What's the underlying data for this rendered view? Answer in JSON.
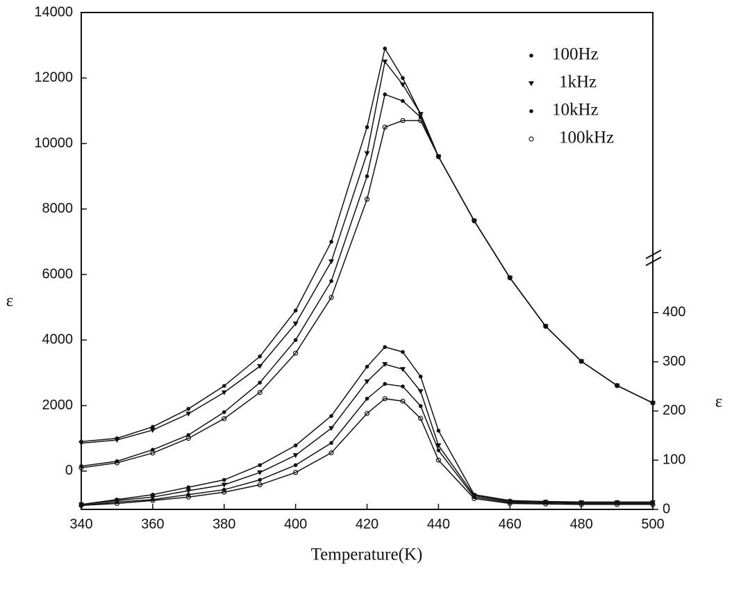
{
  "chart_data": {
    "type": "line",
    "x_label": "Temperature(K)",
    "y_label": "ε",
    "y2_label": "ε",
    "x": [
      340,
      350,
      360,
      370,
      380,
      390,
      400,
      410,
      420,
      425,
      430,
      435,
      440,
      450,
      460,
      470,
      480,
      490,
      500
    ],
    "series": [
      {
        "name": "100Hz",
        "color": "#111111",
        "marker": "dot",
        "values": [
          900,
          1000,
          1350,
          1900,
          2600,
          3500,
          4900,
          7000,
          10500,
          12900,
          12000,
          10900,
          9600,
          7640,
          5900,
          4420,
          3350,
          2610,
          2080
        ]
      },
      {
        "name": "1kHz",
        "color": "#111111",
        "marker": "triangle",
        "values": [
          850,
          950,
          1250,
          1750,
          2400,
          3200,
          4500,
          6400,
          9700,
          12500,
          11800,
          10900,
          9600,
          7640,
          5900,
          4420,
          3350,
          2610,
          2080
        ]
      },
      {
        "name": "10kHz",
        "color": "#111111",
        "marker": "dot",
        "values": [
          150,
          300,
          650,
          1100,
          1800,
          2700,
          4000,
          5800,
          9000,
          11500,
          11300,
          10800,
          9600,
          7640,
          5900,
          4420,
          3350,
          2610,
          2080
        ]
      },
      {
        "name": "100kHz",
        "color": "#111111",
        "marker": "circle",
        "values": [
          100,
          250,
          550,
          1000,
          1600,
          2400,
          3600,
          5300,
          8300,
          10500,
          10700,
          10700,
          9600,
          7640,
          5900,
          4420,
          3350,
          2610,
          2080
        ]
      }
    ],
    "series2": [
      {
        "color": "#111111",
        "marker": "dot",
        "axis": "y2",
        "values": [
          10,
          20,
          30,
          45,
          60,
          90,
          130,
          190,
          290,
          330,
          320,
          270,
          160,
          30,
          18,
          16,
          15,
          15,
          15
        ]
      },
      {
        "color": "#111111",
        "marker": "triangle",
        "axis": "y2",
        "values": [
          10,
          18,
          25,
          38,
          50,
          75,
          110,
          165,
          260,
          295,
          285,
          240,
          130,
          28,
          16,
          15,
          14,
          14,
          14
        ]
      },
      {
        "color": "#111111",
        "marker": "dot",
        "axis": "y2",
        "values": [
          8,
          15,
          20,
          30,
          40,
          60,
          90,
          135,
          225,
          255,
          250,
          210,
          120,
          25,
          14,
          13,
          12,
          12,
          12
        ]
      },
      {
        "color": "#111111",
        "marker": "circle",
        "axis": "y2",
        "values": [
          8,
          12,
          18,
          25,
          35,
          50,
          75,
          115,
          195,
          225,
          220,
          185,
          100,
          22,
          12,
          11,
          10,
          10,
          10
        ]
      }
    ],
    "xlim": [
      340,
      500
    ],
    "xticks": [
      340,
      360,
      380,
      400,
      420,
      440,
      460,
      480,
      500
    ],
    "ylim": [
      -1170,
      14000
    ],
    "yticks": [
      0,
      2000,
      4000,
      6000,
      8000,
      10000,
      12000,
      14000
    ],
    "y2lim": [
      0,
      1010
    ],
    "y2ticks": [
      0,
      100,
      200,
      300,
      400
    ],
    "legend": "top right"
  }
}
